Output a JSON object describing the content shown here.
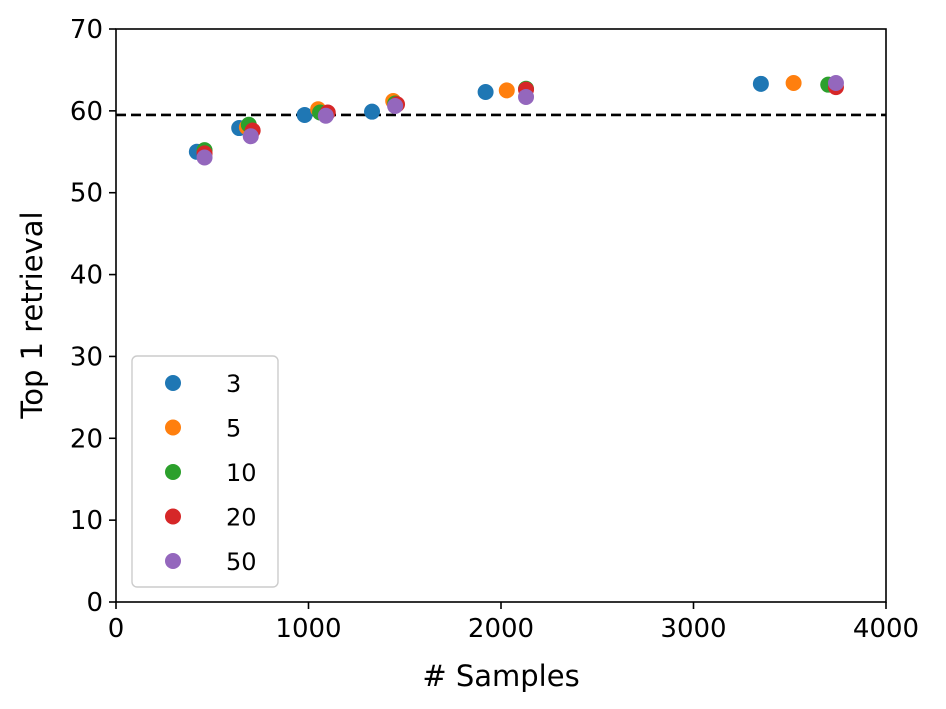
{
  "chart_data": {
    "type": "scatter",
    "title": "",
    "xlabel": "# Samples",
    "ylabel": "Top 1 retrieval",
    "xlim": [
      0,
      4000
    ],
    "ylim": [
      0,
      70
    ],
    "xticks": [
      0,
      1000,
      2000,
      3000,
      4000
    ],
    "yticks": [
      0,
      10,
      20,
      30,
      40,
      50,
      60,
      70
    ],
    "grid": false,
    "legend_position": "lower-left",
    "reference_line": {
      "y": 59.5,
      "style": "dashed",
      "color": "#000000"
    },
    "series": [
      {
        "name": "3",
        "color": "#1f77b4",
        "points": [
          [
            420,
            55.0
          ],
          [
            640,
            57.9
          ],
          [
            980,
            59.5
          ],
          [
            1330,
            59.9
          ],
          [
            1920,
            62.3
          ],
          [
            3350,
            63.3
          ]
        ]
      },
      {
        "name": "5",
        "color": "#ff7f0e",
        "points": [
          [
            460,
            55.1
          ],
          [
            680,
            58.0
          ],
          [
            1050,
            60.2
          ],
          [
            1440,
            61.2
          ],
          [
            2030,
            62.5
          ],
          [
            3520,
            63.4
          ]
        ]
      },
      {
        "name": "10",
        "color": "#2ca02c",
        "points": [
          [
            460,
            55.2
          ],
          [
            690,
            58.3
          ],
          [
            1060,
            59.8
          ],
          [
            1450,
            60.9
          ],
          [
            2130,
            62.7
          ],
          [
            3700,
            63.2
          ]
        ]
      },
      {
        "name": "20",
        "color": "#d62728",
        "points": [
          [
            460,
            54.8
          ],
          [
            710,
            57.6
          ],
          [
            1100,
            59.8
          ],
          [
            1460,
            60.8
          ],
          [
            2130,
            62.6
          ],
          [
            3740,
            62.9
          ]
        ]
      },
      {
        "name": "50",
        "color": "#9467bd",
        "points": [
          [
            460,
            54.3
          ],
          [
            700,
            56.9
          ],
          [
            1090,
            59.4
          ],
          [
            1450,
            60.6
          ],
          [
            2130,
            61.7
          ],
          [
            3740,
            63.4
          ]
        ]
      }
    ]
  }
}
